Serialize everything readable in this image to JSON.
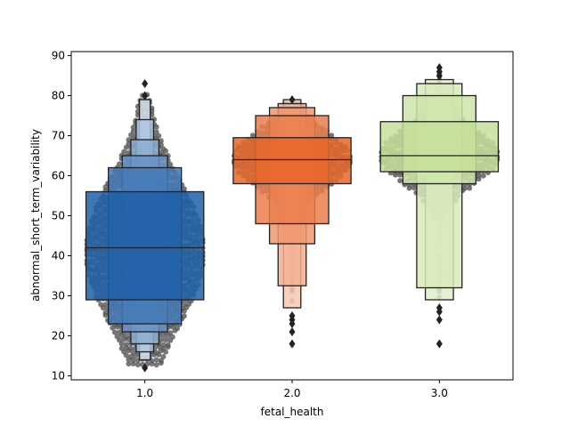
{
  "chart_data": {
    "type": "boxenplot with swarm overlay",
    "xlabel": "fetal_health",
    "ylabel": "abnormal_short_term_variability",
    "categories": [
      "1.0",
      "2.0",
      "3.0"
    ],
    "ylim": [
      9,
      91
    ],
    "yticks": [
      10,
      20,
      30,
      40,
      50,
      60,
      70,
      80,
      90
    ],
    "groups": [
      {
        "category": "1.0",
        "color": "#1f5fa8",
        "boxes": [
          {
            "low": 29,
            "high": 56
          },
          {
            "low": 23,
            "high": 62
          },
          {
            "low": 21,
            "high": 65
          },
          {
            "low": 18,
            "high": 69
          },
          {
            "low": 16,
            "high": 74
          },
          {
            "low": 14,
            "high": 79
          }
        ],
        "median": 42,
        "outliers": [
          12,
          80,
          83
        ],
        "points": {
          "min": 13,
          "max": 80,
          "center": 41,
          "spread": 18
        }
      },
      {
        "category": "2.0",
        "color": "#e8662a",
        "boxes": [
          {
            "low": 58,
            "high": 69.5
          },
          {
            "low": 48,
            "high": 75
          },
          {
            "low": 43,
            "high": 77
          },
          {
            "low": 32.5,
            "high": 78
          },
          {
            "low": 27,
            "high": 79
          }
        ],
        "median": 64,
        "outliers": [
          18,
          21,
          23,
          24,
          25,
          79
        ],
        "points": {
          "min": 29,
          "max": 78,
          "center": 64,
          "spread": 7
        }
      },
      {
        "category": "3.0",
        "color": "#c5e09a",
        "boxes": [
          {
            "low": 61,
            "high": 73.5
          },
          {
            "low": 58,
            "high": 80
          },
          {
            "low": 32,
            "high": 83
          },
          {
            "low": 29,
            "high": 84
          }
        ],
        "median": 65,
        "outliers": [
          18,
          24,
          26,
          27,
          85,
          86,
          87
        ],
        "points": {
          "min": 29,
          "max": 86,
          "center": 65,
          "spread": 7
        }
      }
    ]
  }
}
